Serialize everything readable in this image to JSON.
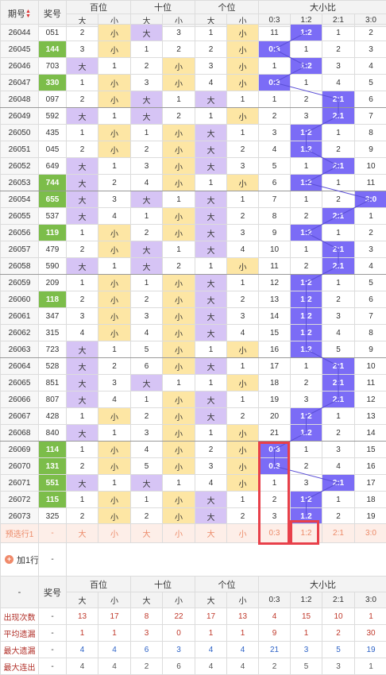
{
  "header": {
    "issue_label": "期号",
    "prize_label": "奖号",
    "groups": [
      "百位",
      "十位",
      "个位",
      "大小比"
    ],
    "sub_big": "大",
    "sub_small": "小",
    "ratios": [
      "0:3",
      "1:2",
      "2:1",
      "3:0"
    ]
  },
  "rows": [
    {
      "issue": "26044",
      "prize": "051",
      "hl": false,
      "h": [
        2,
        "小"
      ],
      "t": [
        "大",
        3
      ],
      "o": [
        1,
        "小"
      ],
      "r": [
        11,
        "1:2",
        1,
        2
      ],
      "ri": 1
    },
    {
      "issue": "26045",
      "prize": "144",
      "hl": true,
      "h": [
        3,
        "小"
      ],
      "t": [
        1,
        2
      ],
      "o": [
        2,
        "小"
      ],
      "r": [
        "0:3",
        1,
        2,
        3
      ],
      "ri": 0
    },
    {
      "issue": "26046",
      "prize": "703",
      "hl": false,
      "h": [
        "大",
        1
      ],
      "t": [
        2,
        "小"
      ],
      "o": [
        3,
        "小"
      ],
      "r": [
        1,
        "1:2",
        3,
        4
      ],
      "ri": 1
    },
    {
      "issue": "26047",
      "prize": "330",
      "hl": true,
      "h": [
        1,
        "小"
      ],
      "t": [
        3,
        "小"
      ],
      "o": [
        4,
        "小"
      ],
      "r": [
        "0:3",
        1,
        4,
        5
      ],
      "ri": 0
    },
    {
      "issue": "26048",
      "prize": "097",
      "hl": false,
      "h": [
        2,
        "小"
      ],
      "t": [
        "大",
        1
      ],
      "o": [
        "大",
        1
      ],
      "r": [
        1,
        2,
        "2:1",
        6
      ],
      "ri": 2
    },
    {
      "issue": "26049",
      "prize": "592",
      "hl": false,
      "h": [
        "大",
        1
      ],
      "t": [
        "大",
        2
      ],
      "o": [
        1,
        "小"
      ],
      "r": [
        2,
        3,
        "2:1",
        7
      ],
      "ri": 2
    },
    {
      "issue": "26050",
      "prize": "435",
      "hl": false,
      "h": [
        1,
        "小"
      ],
      "t": [
        1,
        "小"
      ],
      "o": [
        "大",
        1
      ],
      "r": [
        3,
        "1:2",
        1,
        8
      ],
      "ri": 1
    },
    {
      "issue": "26051",
      "prize": "045",
      "hl": false,
      "h": [
        2,
        "小"
      ],
      "t": [
        2,
        "小"
      ],
      "o": [
        "大",
        2
      ],
      "r": [
        4,
        "1:2",
        2,
        9
      ],
      "ri": 1
    },
    {
      "issue": "26052",
      "prize": "649",
      "hl": false,
      "h": [
        "大",
        1
      ],
      "t": [
        3,
        "小"
      ],
      "o": [
        "大",
        3
      ],
      "r": [
        5,
        1,
        "2:1",
        10
      ],
      "ri": 2
    },
    {
      "issue": "26053",
      "prize": "744",
      "hl": true,
      "h": [
        "大",
        2
      ],
      "t": [
        4,
        "小"
      ],
      "o": [
        1,
        "小"
      ],
      "r": [
        6,
        "1:2",
        1,
        11
      ],
      "ri": 1
    },
    {
      "issue": "26054",
      "prize": "655",
      "hl": true,
      "h": [
        "大",
        3
      ],
      "t": [
        "大",
        1
      ],
      "o": [
        "大",
        1
      ],
      "r": [
        7,
        1,
        2,
        "3:0"
      ],
      "ri": 3
    },
    {
      "issue": "26055",
      "prize": "537",
      "hl": false,
      "h": [
        "大",
        4
      ],
      "t": [
        1,
        "小"
      ],
      "o": [
        "大",
        2
      ],
      "r": [
        8,
        2,
        "2:1",
        1
      ],
      "ri": 2
    },
    {
      "issue": "26056",
      "prize": "119",
      "hl": true,
      "h": [
        1,
        "小"
      ],
      "t": [
        2,
        "小"
      ],
      "o": [
        "大",
        3
      ],
      "r": [
        9,
        "1:2",
        1,
        2
      ],
      "ri": 1
    },
    {
      "issue": "26057",
      "prize": "479",
      "hl": false,
      "h": [
        2,
        "小"
      ],
      "t": [
        "大",
        1
      ],
      "o": [
        "大",
        4
      ],
      "r": [
        10,
        1,
        "2:1",
        3
      ],
      "ri": 2
    },
    {
      "issue": "26058",
      "prize": "590",
      "hl": false,
      "h": [
        "大",
        1
      ],
      "t": [
        "大",
        2
      ],
      "o": [
        1,
        "小"
      ],
      "r": [
        11,
        2,
        "2:1",
        4
      ],
      "ri": 2
    },
    {
      "issue": "26059",
      "prize": "209",
      "hl": false,
      "h": [
        1,
        "小"
      ],
      "t": [
        1,
        "小"
      ],
      "o": [
        "大",
        1
      ],
      "r": [
        12,
        "1:2",
        1,
        5
      ],
      "ri": 1
    },
    {
      "issue": "26060",
      "prize": "118",
      "hl": true,
      "h": [
        2,
        "小"
      ],
      "t": [
        2,
        "小"
      ],
      "o": [
        "大",
        2
      ],
      "r": [
        13,
        "1:2",
        2,
        6
      ],
      "ri": 1
    },
    {
      "issue": "26061",
      "prize": "347",
      "hl": false,
      "h": [
        3,
        "小"
      ],
      "t": [
        3,
        "小"
      ],
      "o": [
        "大",
        3
      ],
      "r": [
        14,
        "1:2",
        3,
        7
      ],
      "ri": 1
    },
    {
      "issue": "26062",
      "prize": "315",
      "hl": false,
      "h": [
        4,
        "小"
      ],
      "t": [
        4,
        "小"
      ],
      "o": [
        "大",
        4
      ],
      "r": [
        15,
        "1:2",
        4,
        8
      ],
      "ri": 1
    },
    {
      "issue": "26063",
      "prize": "723",
      "hl": false,
      "h": [
        "大",
        1
      ],
      "t": [
        5,
        "小"
      ],
      "o": [
        1,
        "小"
      ],
      "r": [
        16,
        "1:2",
        5,
        9
      ],
      "ri": 1
    },
    {
      "issue": "26064",
      "prize": "528",
      "hl": false,
      "h": [
        "大",
        2
      ],
      "t": [
        6,
        "小"
      ],
      "o": [
        "大",
        1
      ],
      "r": [
        17,
        1,
        "2:1",
        10
      ],
      "ri": 2
    },
    {
      "issue": "26065",
      "prize": "851",
      "hl": false,
      "h": [
        "大",
        3
      ],
      "t": [
        "大",
        1
      ],
      "o": [
        1,
        "小"
      ],
      "r": [
        18,
        2,
        "2:1",
        11
      ],
      "ri": 2
    },
    {
      "issue": "26066",
      "prize": "807",
      "hl": false,
      "h": [
        "大",
        4
      ],
      "t": [
        1,
        "小"
      ],
      "o": [
        "大",
        1
      ],
      "r": [
        19,
        3,
        "2:1",
        12
      ],
      "ri": 2
    },
    {
      "issue": "26067",
      "prize": "428",
      "hl": false,
      "h": [
        1,
        "小"
      ],
      "t": [
        2,
        "小"
      ],
      "o": [
        "大",
        2
      ],
      "r": [
        20,
        "1:2",
        1,
        13
      ],
      "ri": 1
    },
    {
      "issue": "26068",
      "prize": "840",
      "hl": false,
      "h": [
        "大",
        1
      ],
      "t": [
        3,
        "小"
      ],
      "o": [
        1,
        "小"
      ],
      "r": [
        21,
        "1:2",
        2,
        14
      ],
      "ri": 1
    },
    {
      "issue": "26069",
      "prize": "114",
      "hl": true,
      "h": [
        1,
        "小"
      ],
      "t": [
        4,
        "小"
      ],
      "o": [
        2,
        "小"
      ],
      "r": [
        "0:3",
        1,
        3,
        15
      ],
      "ri": 0
    },
    {
      "issue": "26070",
      "prize": "131",
      "hl": true,
      "h": [
        2,
        "小"
      ],
      "t": [
        5,
        "小"
      ],
      "o": [
        3,
        "小"
      ],
      "r": [
        "0:3",
        2,
        4,
        16
      ],
      "ri": 0
    },
    {
      "issue": "26071",
      "prize": "551",
      "hl": true,
      "h": [
        "大",
        1
      ],
      "t": [
        "大",
        1
      ],
      "o": [
        4,
        "小"
      ],
      "r": [
        1,
        3,
        "2:1",
        17
      ],
      "ri": 2
    },
    {
      "issue": "26072",
      "prize": "115",
      "hl": true,
      "h": [
        1,
        "小"
      ],
      "t": [
        1,
        "小"
      ],
      "o": [
        "大",
        1
      ],
      "r": [
        2,
        "1:2",
        1,
        18
      ],
      "ri": 1
    },
    {
      "issue": "26073",
      "prize": "325",
      "hl": false,
      "h": [
        2,
        "小"
      ],
      "t": [
        2,
        "小"
      ],
      "o": [
        "大",
        2
      ],
      "r": [
        3,
        "1:2",
        2,
        19
      ],
      "ri": 1
    }
  ],
  "predict": {
    "label": "预选行1",
    "prize": "-",
    "cells": [
      "大",
      "小",
      "大",
      "小",
      "大",
      "小",
      "0:3",
      "1:2",
      "2:1",
      "3:0"
    ]
  },
  "add_row": {
    "label": "加1行",
    "dash": "-"
  },
  "footer": {
    "dash": "-",
    "prize_label": "奖号",
    "groups": [
      "百位",
      "十位",
      "个位",
      "大小比"
    ],
    "sub": [
      "大",
      "小",
      "大",
      "小",
      "大",
      "小",
      "0:3",
      "1:2",
      "2:1",
      "3:0"
    ],
    "stats": [
      {
        "label": "出现次数",
        "values": [
          13,
          17,
          8,
          22,
          17,
          13,
          4,
          15,
          10,
          1
        ]
      },
      {
        "label": "平均遗漏",
        "values": [
          1,
          1,
          3,
          0,
          1,
          1,
          9,
          1,
          2,
          30
        ]
      },
      {
        "label": "最大遗漏",
        "values": [
          4,
          4,
          6,
          3,
          4,
          4,
          21,
          3,
          5,
          19
        ]
      },
      {
        "label": "最大连出",
        "values": [
          4,
          4,
          2,
          6,
          4,
          4,
          2,
          5,
          3,
          1
        ]
      }
    ]
  }
}
